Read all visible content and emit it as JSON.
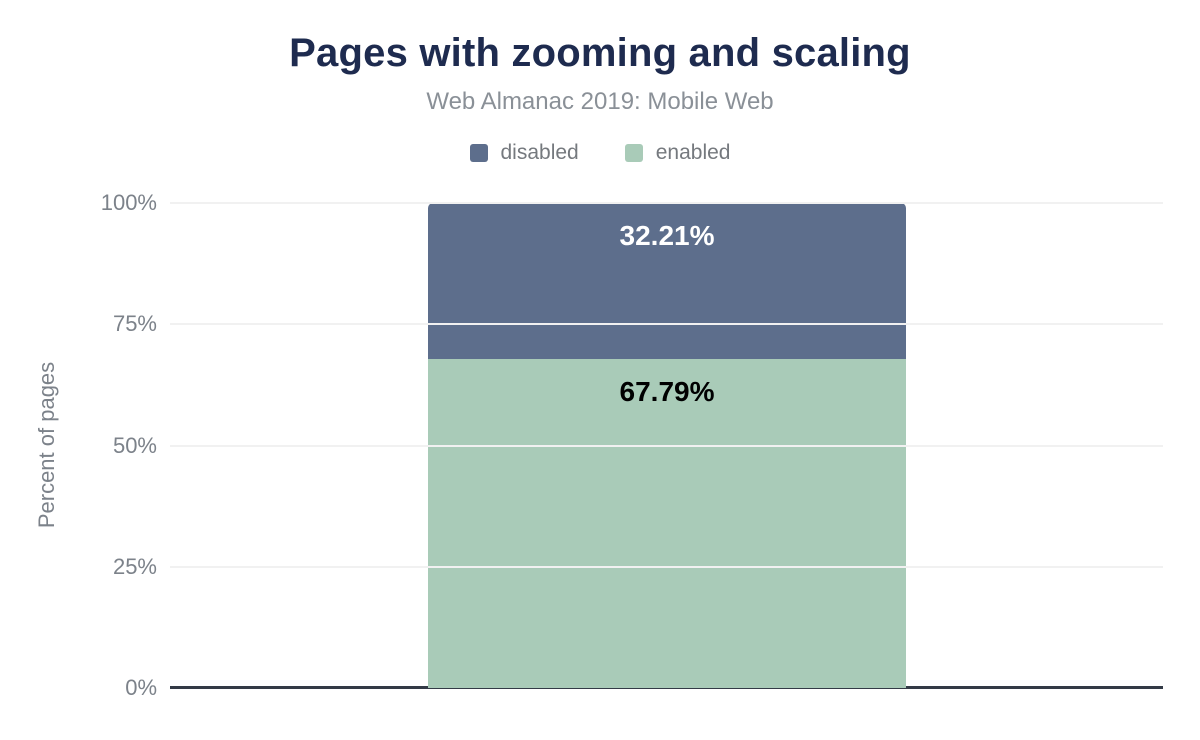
{
  "header": {
    "title": "Pages with zooming and scaling",
    "subtitle": "Web Almanac 2019: Mobile Web"
  },
  "chart_data": {
    "type": "bar",
    "stacked": true,
    "categories": [
      ""
    ],
    "series": [
      {
        "name": "disabled",
        "values": [
          32.21
        ],
        "label": "32.21%",
        "color": "#5d6e8c",
        "label_color": "#ffffff"
      },
      {
        "name": "enabled",
        "values": [
          67.79
        ],
        "label": "67.79%",
        "color": "#a9cbb8",
        "label_color": "#000000"
      }
    ],
    "title": "Pages with zooming and scaling",
    "subtitle": "Web Almanac 2019: Mobile Web",
    "xlabel": "",
    "ylabel": "Percent of pages",
    "ylim": [
      0,
      100
    ],
    "yticks": [
      "0%",
      "25%",
      "50%",
      "75%",
      "100%"
    ],
    "ytick_values": [
      0,
      25,
      50,
      75,
      100
    ],
    "grid": true,
    "legend_position": "top"
  },
  "colors": {
    "title": "#1e2b4f",
    "subtitle": "#8a9097",
    "axis_text": "#7c828a",
    "axis_line": "#333a46",
    "gridline": "#f1f1f1",
    "background": "#ffffff"
  }
}
